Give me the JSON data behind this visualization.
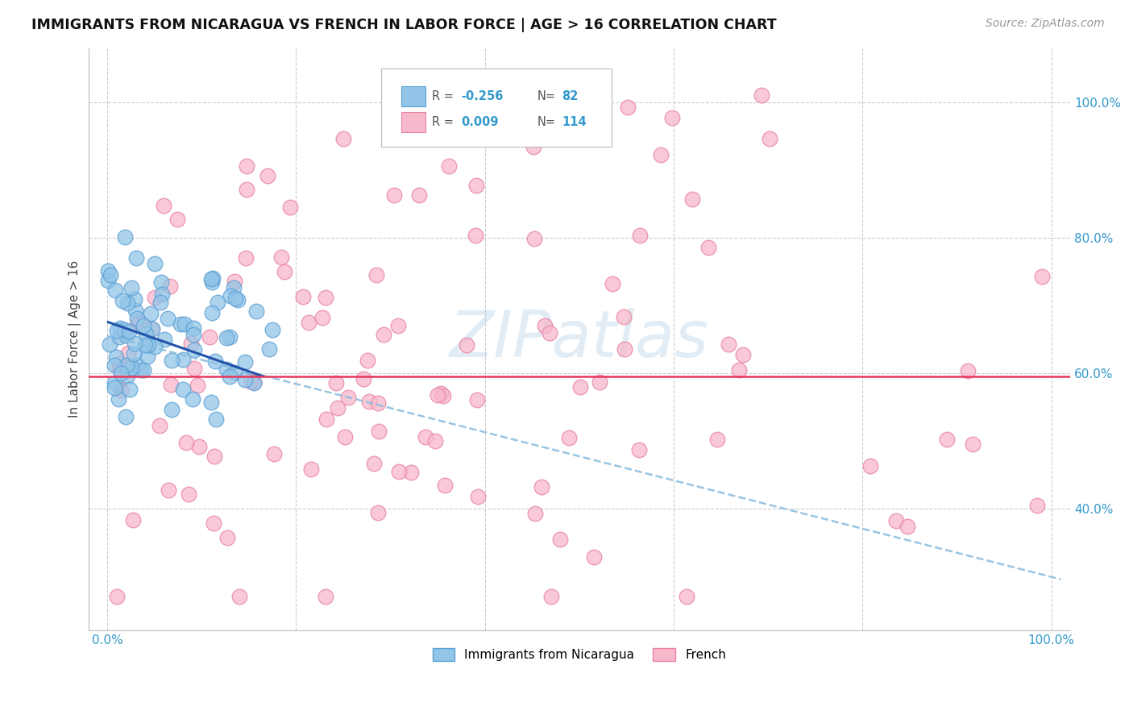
{
  "title": "IMMIGRANTS FROM NICARAGUA VS FRENCH IN LABOR FORCE | AGE > 16 CORRELATION CHART",
  "source": "Source: ZipAtlas.com",
  "ylabel": "In Labor Force | Age > 16",
  "xlim": [
    -0.02,
    1.02
  ],
  "ylim": [
    0.22,
    1.08
  ],
  "yticks": [
    0.4,
    0.6,
    0.8,
    1.0
  ],
  "xtick_labels_show": [
    "0.0%",
    "100.0%"
  ],
  "ytick_labels": [
    "40.0%",
    "60.0%",
    "80.0%",
    "100.0%"
  ],
  "nicaragua_R": -0.256,
  "nicaragua_N": 82,
  "french_R": 0.009,
  "french_N": 114,
  "nicaragua_color": "#92C5E8",
  "nicaragua_edge": "#5A9FD4",
  "french_color": "#F7B8CC",
  "french_edge": "#E882A0",
  "nicaragua_line_color": "#2255AA",
  "french_line_color": "#E8365D",
  "dashed_line_color": "#88BBDD",
  "grid_color": "#CCCCCC",
  "background_color": "#FFFFFF",
  "pink_line_y": 0.595,
  "nic_line_x0": 0.001,
  "nic_line_x1": 0.165,
  "nic_line_y0": 0.675,
  "nic_line_y1": 0.595,
  "dash_line_x0": 0.0,
  "dash_line_x1": 1.01,
  "dash_line_y0": 0.655,
  "dash_line_y1": 0.295
}
